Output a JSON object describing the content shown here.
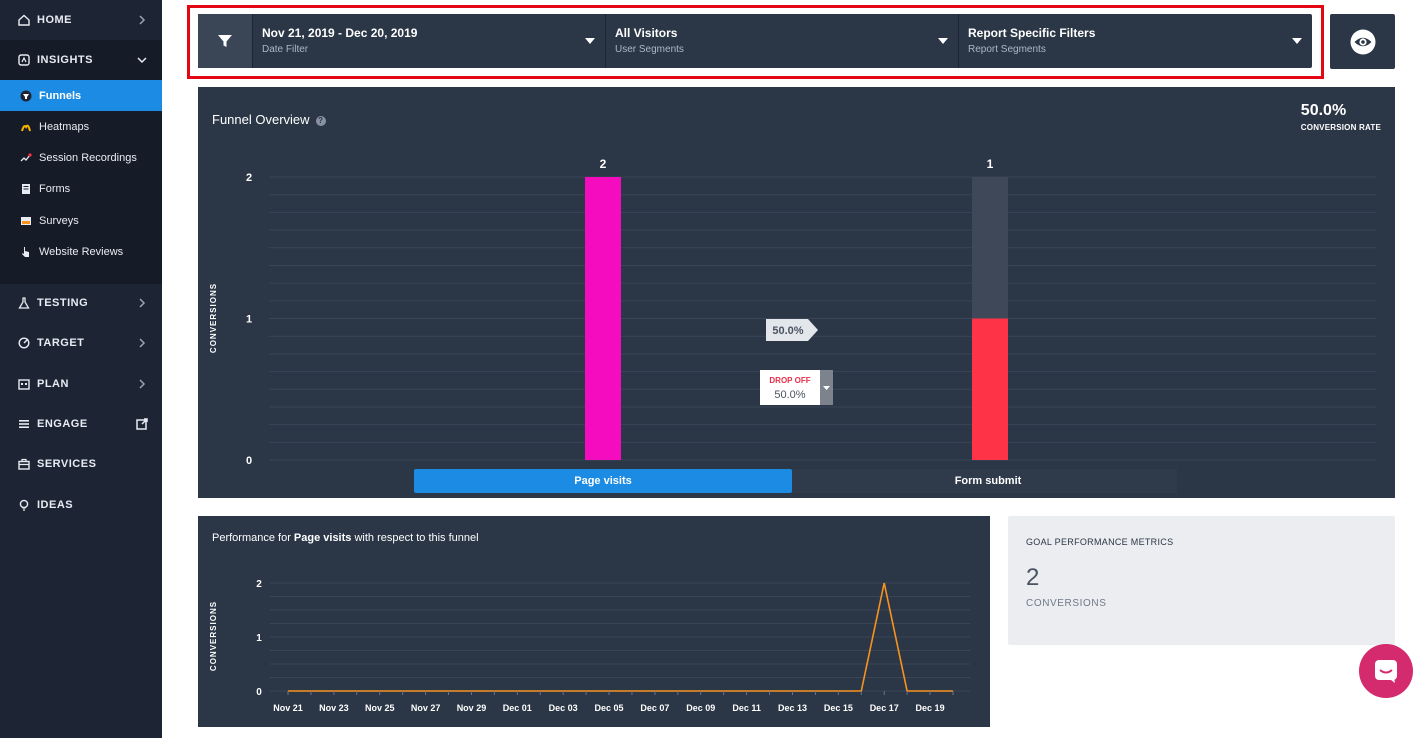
{
  "sidebar": {
    "home": "HOME",
    "insights": "INSIGHTS",
    "sub_items": [
      "Funnels",
      "Heatmaps",
      "Session Recordings",
      "Forms",
      "Surveys",
      "Website Reviews"
    ],
    "testing": "TESTING",
    "target": "TARGET",
    "plan": "PLAN",
    "engage": "ENGAGE",
    "services": "SERVICES",
    "ideas": "IDEAS"
  },
  "filters": {
    "date": {
      "value": "Nov 21, 2019 - Dec 20, 2019",
      "label": "Date Filter"
    },
    "segment": {
      "value": "All Visitors",
      "label": "User Segments"
    },
    "report": {
      "value": "Report Specific Filters",
      "label": "Report Segments"
    }
  },
  "funnel": {
    "title": "Funnel Overview",
    "conversion_rate": "50.0%",
    "conversion_rate_label": "CONVERSION RATE",
    "conversion_arrow": "50.0%",
    "drop_off_label": "DROP OFF",
    "drop_off_value": "50.0%",
    "tabs": [
      "Page visits",
      "Form submit"
    ]
  },
  "performance": {
    "title_prefix": "Performance for ",
    "title_goal": "Page visits",
    "title_suffix": " with respect to this funnel"
  },
  "metrics": {
    "heading": "GOAL PERFORMANCE METRICS",
    "value": "2",
    "label": "CONVERSIONS"
  },
  "colors": {
    "accent": "#1b8be3",
    "bar_step1": "#f50cbf",
    "bar_step2": "#ff3347",
    "line": "#f7931e",
    "highlight": "#e30613"
  },
  "chart_data": [
    {
      "type": "bar",
      "categories": [
        "Page visits",
        "Form submit"
      ],
      "values": [
        2,
        1
      ],
      "data_labels": [
        "2",
        "1"
      ],
      "ylabel": "CONVERSIONS",
      "ylim": [
        0,
        2
      ],
      "yticks": [
        "0",
        "1",
        "2"
      ],
      "grid": true
    },
    {
      "type": "line",
      "x": [
        "Nov 21",
        "Nov 22",
        "Nov 23",
        "Nov 24",
        "Nov 25",
        "Nov 26",
        "Nov 27",
        "Nov 28",
        "Nov 29",
        "Nov 30",
        "Dec 01",
        "Dec 02",
        "Dec 03",
        "Dec 04",
        "Dec 05",
        "Dec 06",
        "Dec 07",
        "Dec 08",
        "Dec 09",
        "Dec 10",
        "Dec 11",
        "Dec 12",
        "Dec 13",
        "Dec 14",
        "Dec 15",
        "Dec 16",
        "Dec 17",
        "Dec 18",
        "Dec 19",
        "Dec 20"
      ],
      "values": [
        0,
        0,
        0,
        0,
        0,
        0,
        0,
        0,
        0,
        0,
        0,
        0,
        0,
        0,
        0,
        0,
        0,
        0,
        0,
        0,
        0,
        0,
        0,
        0,
        0,
        0,
        2,
        0,
        0,
        0
      ],
      "xtick_labels": [
        "Nov 21",
        "Nov 23",
        "Nov 25",
        "Nov 27",
        "Nov 29",
        "Dec 01",
        "Dec 03",
        "Dec 05",
        "Dec 07",
        "Dec 09",
        "Dec 11",
        "Dec 13",
        "Dec 15",
        "Dec 17",
        "Dec 19"
      ],
      "ylabel": "CONVERSIONS",
      "ylim": [
        0,
        2
      ],
      "yticks": [
        "0",
        "1",
        "2"
      ],
      "grid": true
    }
  ]
}
